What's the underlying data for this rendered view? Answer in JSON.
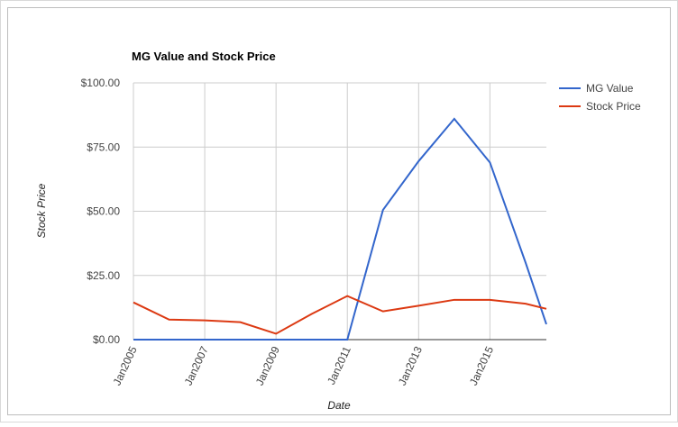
{
  "chart_data": {
    "type": "line",
    "title": "MG Value and Stock Price",
    "x_label": "Date",
    "y_label": "Stock Price",
    "x": [
      "2005-01",
      "2006-01",
      "2007-01",
      "2008-01",
      "2009-01",
      "2010-01",
      "2011-01",
      "2012-01",
      "2013-01",
      "2014-01",
      "2015-01",
      "2016-01",
      "2016-08"
    ],
    "series": [
      {
        "name": "MG Value",
        "color": "#3366cc",
        "values": [
          0,
          0,
          0,
          0,
          0,
          0,
          0,
          50.5,
          69.5,
          86,
          69,
          30,
          6
        ]
      },
      {
        "name": "Stock Price",
        "color": "#dc3912",
        "values": [
          14.5,
          7.8,
          7.5,
          6.8,
          2.3,
          10,
          17,
          11,
          13.2,
          15.5,
          15.5,
          14,
          12
        ]
      }
    ],
    "xlim": [
      "2005-01",
      "2016-08"
    ],
    "xticks": [
      {
        "value": "2005-01",
        "label": "Jan2005"
      },
      {
        "value": "2007-01",
        "label": "Jan2007"
      },
      {
        "value": "2009-01",
        "label": "Jan2009"
      },
      {
        "value": "2011-01",
        "label": "Jan2011"
      },
      {
        "value": "2013-01",
        "label": "Jan2013"
      },
      {
        "value": "2015-01",
        "label": "Jan2015"
      }
    ],
    "ylim": [
      0,
      100
    ],
    "yticks": [
      {
        "value": 0,
        "label": "$0.00"
      },
      {
        "value": 25,
        "label": "$25.00"
      },
      {
        "value": 50,
        "label": "$50.00"
      },
      {
        "value": 75,
        "label": "$75.00"
      },
      {
        "value": 100,
        "label": "$100.00"
      }
    ],
    "grid": true,
    "legend": "right"
  }
}
